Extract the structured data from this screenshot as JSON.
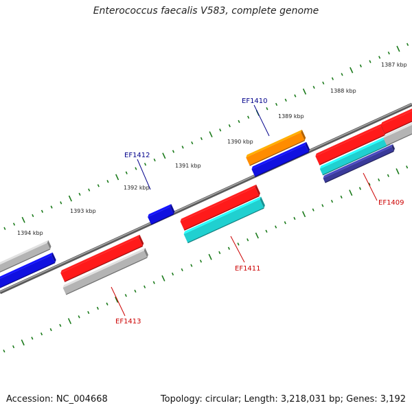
{
  "title": "Enterococcus faecalis V583, complete genome",
  "footer": {
    "accession": "Accession: NC_004668",
    "summary": "Topology: circular; Length: 3,218,031 bp; Genes: 3,192"
  },
  "colors": {
    "backbone": "#777777",
    "tick": "#1a7a1a",
    "label_forward": "#00008b",
    "label_reverse": "#cc0000",
    "gene_red": "#ff1a1a",
    "gene_blue": "#1010e0",
    "gene_orange": "#ff8c00",
    "gene_cyan": "#20d0d0",
    "gene_gray": "#b4b4b4",
    "gene_navy": "#3a3a9a"
  },
  "scale_labels": [
    "1394 kbp",
    "1393 kbp",
    "1392 kbp",
    "1391 kbp",
    "1390 kbp",
    "1389 kbp",
    "1388 kbp",
    "1387 kbp"
  ],
  "gene_labels": {
    "ef1412": "EF1412",
    "ef1410": "EF1410",
    "ef1411": "EF1411",
    "ef1409": "EF1409",
    "ef1413": "EF1413"
  }
}
